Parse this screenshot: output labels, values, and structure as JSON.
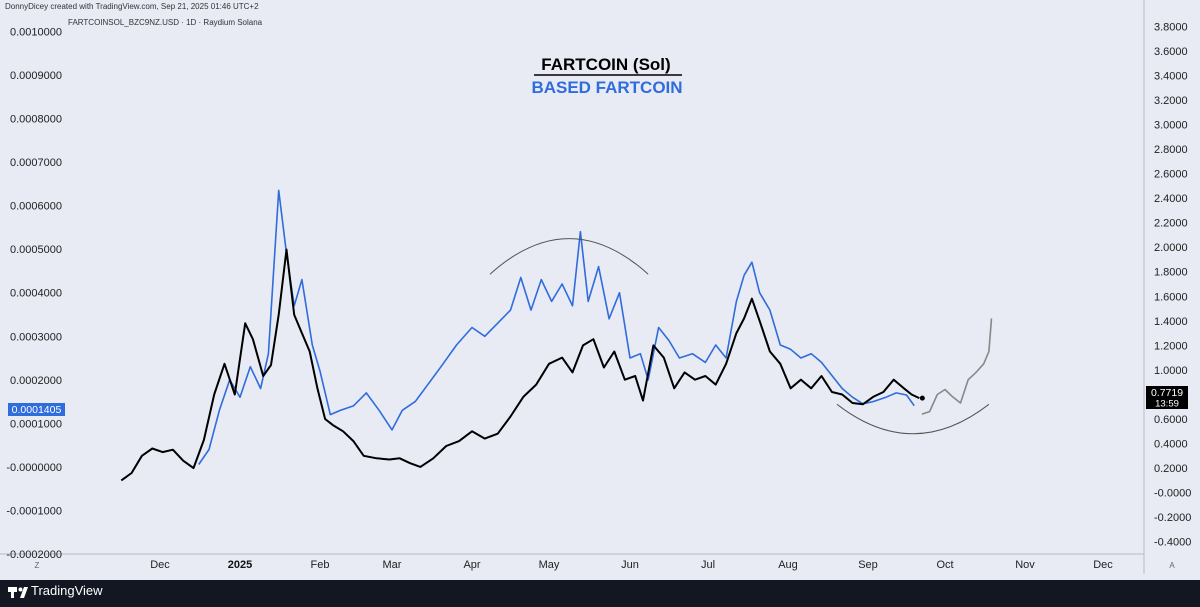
{
  "header": {
    "credit": "DonnyDicey created with TradingView.com, Sep 21, 2025 01:46 UTC+2",
    "symbol": "FARTCOINSOL_BZC9NZ.USD · 1D · Raydium Solana"
  },
  "annotation": {
    "title": "FARTCOIN (Sol)",
    "subtitle": "BASED FARTCOIN"
  },
  "footer": {
    "brand": "TradingView",
    "left_corner": "Z",
    "right_corner": "A"
  },
  "colors": {
    "fartcoin": "#000000",
    "based": "#2f6cdc",
    "background": "#e8eaf4",
    "footer": "#131722",
    "projection": "#888888"
  },
  "chart_data": {
    "type": "line",
    "x_axis": {
      "ticks": [
        "Dec",
        "2025",
        "Feb",
        "Mar",
        "Apr",
        "May",
        "Jun",
        "Jul",
        "Aug",
        "Sep",
        "Oct",
        "Nov",
        "Dec"
      ],
      "bold_ticks": [
        "2025"
      ]
    },
    "left_axis": {
      "ticks": [
        "0.0010000",
        "0.0009000",
        "0.0008000",
        "0.0007000",
        "0.0006000",
        "0.0005000",
        "0.0004000",
        "0.0003000",
        "0.0002000",
        "0.0001000",
        "-0.0000000",
        "-0.0001000",
        "-0.0002000"
      ],
      "range": [
        -0.0002,
        0.00104
      ],
      "current_label": "0.0001405"
    },
    "right_axis": {
      "ticks": [
        "3.8000",
        "3.6000",
        "3.4000",
        "3.2000",
        "3.0000",
        "2.8000",
        "2.6000",
        "2.4000",
        "2.2000",
        "2.0000",
        "1.8000",
        "1.6000",
        "1.4000",
        "1.2000",
        "1.0000",
        "0.8000",
        "0.6000",
        "0.4000",
        "0.2000",
        "-0.0000",
        "-0.2000",
        "-0.4000"
      ],
      "range": [
        -0.5,
        3.9
      ],
      "current_label": "0.7719",
      "countdown": "13:59"
    },
    "series": [
      {
        "name": "FARTCOIN (Sol)",
        "axis": "right",
        "points": [
          [
            "2024-11-16",
            0.1
          ],
          [
            "2024-11-20",
            0.16
          ],
          [
            "2024-11-24",
            0.3
          ],
          [
            "2024-11-28",
            0.36
          ],
          [
            "2024-12-02",
            0.33
          ],
          [
            "2024-12-06",
            0.35
          ],
          [
            "2024-12-10",
            0.26
          ],
          [
            "2024-12-14",
            0.2
          ],
          [
            "2024-12-18",
            0.43
          ],
          [
            "2024-12-22",
            0.8
          ],
          [
            "2024-12-26",
            1.05
          ],
          [
            "2024-12-30",
            0.8
          ],
          [
            "2025-01-03",
            1.38
          ],
          [
            "2025-01-06",
            1.25
          ],
          [
            "2025-01-10",
            0.95
          ],
          [
            "2025-01-13",
            1.04
          ],
          [
            "2025-01-16",
            1.45
          ],
          [
            "2025-01-19",
            1.98
          ],
          [
            "2025-01-22",
            1.45
          ],
          [
            "2025-01-25",
            1.3
          ],
          [
            "2025-01-28",
            1.15
          ],
          [
            "2025-01-31",
            0.85
          ],
          [
            "2025-02-03",
            0.6
          ],
          [
            "2025-02-06",
            0.55
          ],
          [
            "2025-02-10",
            0.5
          ],
          [
            "2025-02-14",
            0.42
          ],
          [
            "2025-02-18",
            0.3
          ],
          [
            "2025-02-23",
            0.28
          ],
          [
            "2025-02-28",
            0.27
          ],
          [
            "2025-03-04",
            0.28
          ],
          [
            "2025-03-08",
            0.24
          ],
          [
            "2025-03-12",
            0.21
          ],
          [
            "2025-03-17",
            0.28
          ],
          [
            "2025-03-22",
            0.38
          ],
          [
            "2025-03-27",
            0.42
          ],
          [
            "2025-04-01",
            0.5
          ],
          [
            "2025-04-06",
            0.44
          ],
          [
            "2025-04-11",
            0.48
          ],
          [
            "2025-04-16",
            0.62
          ],
          [
            "2025-04-21",
            0.78
          ],
          [
            "2025-04-26",
            0.88
          ],
          [
            "2025-05-01",
            1.05
          ],
          [
            "2025-05-06",
            1.1
          ],
          [
            "2025-05-10",
            0.98
          ],
          [
            "2025-05-14",
            1.2
          ],
          [
            "2025-05-18",
            1.25
          ],
          [
            "2025-05-22",
            1.02
          ],
          [
            "2025-05-26",
            1.15
          ],
          [
            "2025-05-30",
            0.92
          ],
          [
            "2025-06-03",
            0.95
          ],
          [
            "2025-06-06",
            0.75
          ],
          [
            "2025-06-10",
            1.2
          ],
          [
            "2025-06-14",
            1.1
          ],
          [
            "2025-06-18",
            0.85
          ],
          [
            "2025-06-22",
            0.98
          ],
          [
            "2025-06-26",
            0.92
          ],
          [
            "2025-06-30",
            0.95
          ],
          [
            "2025-07-04",
            0.88
          ],
          [
            "2025-07-08",
            1.05
          ],
          [
            "2025-07-12",
            1.3
          ],
          [
            "2025-07-15",
            1.42
          ],
          [
            "2025-07-18",
            1.58
          ],
          [
            "2025-07-21",
            1.4
          ],
          [
            "2025-07-25",
            1.15
          ],
          [
            "2025-07-29",
            1.05
          ],
          [
            "2025-08-02",
            0.85
          ],
          [
            "2025-08-06",
            0.92
          ],
          [
            "2025-08-10",
            0.85
          ],
          [
            "2025-08-14",
            0.95
          ],
          [
            "2025-08-18",
            0.82
          ],
          [
            "2025-08-22",
            0.8
          ],
          [
            "2025-08-26",
            0.73
          ],
          [
            "2025-08-30",
            0.72
          ],
          [
            "2025-09-03",
            0.78
          ],
          [
            "2025-09-07",
            0.82
          ],
          [
            "2025-09-11",
            0.92
          ],
          [
            "2025-09-15",
            0.85
          ],
          [
            "2025-09-18",
            0.8
          ],
          [
            "2025-09-21",
            0.77
          ]
        ]
      },
      {
        "name": "BASED FARTCOIN",
        "axis": "left",
        "points": [
          [
            "2024-12-16",
            5.5e-06
          ],
          [
            "2024-12-20",
            4e-05
          ],
          [
            "2024-12-24",
            0.00013
          ],
          [
            "2024-12-28",
            0.0002
          ],
          [
            "2025-01-01",
            0.00016
          ],
          [
            "2025-01-05",
            0.00023
          ],
          [
            "2025-01-09",
            0.00018
          ],
          [
            "2025-01-12",
            0.00026
          ],
          [
            "2025-01-16",
            0.000635
          ],
          [
            "2025-01-19",
            0.00049
          ],
          [
            "2025-01-22",
            0.00037
          ],
          [
            "2025-01-25",
            0.00043
          ],
          [
            "2025-01-29",
            0.00028
          ],
          [
            "2025-02-01",
            0.00022
          ],
          [
            "2025-02-05",
            0.00012
          ],
          [
            "2025-02-09",
            0.00013
          ],
          [
            "2025-02-14",
            0.00014
          ],
          [
            "2025-02-19",
            0.00017
          ],
          [
            "2025-02-24",
            0.00013
          ],
          [
            "2025-03-01",
            8.5e-05
          ],
          [
            "2025-03-05",
            0.00013
          ],
          [
            "2025-03-10",
            0.00015
          ],
          [
            "2025-03-15",
            0.00019
          ],
          [
            "2025-03-20",
            0.00023
          ],
          [
            "2025-03-26",
            0.00028
          ],
          [
            "2025-04-01",
            0.00032
          ],
          [
            "2025-04-06",
            0.0003
          ],
          [
            "2025-04-11",
            0.00033
          ],
          [
            "2025-04-16",
            0.00036
          ],
          [
            "2025-04-20",
            0.000435
          ],
          [
            "2025-04-24",
            0.00036
          ],
          [
            "2025-04-28",
            0.00043
          ],
          [
            "2025-05-02",
            0.00038
          ],
          [
            "2025-05-06",
            0.00042
          ],
          [
            "2025-05-10",
            0.00037
          ],
          [
            "2025-05-13",
            0.00054
          ],
          [
            "2025-05-16",
            0.00038
          ],
          [
            "2025-05-20",
            0.00046
          ],
          [
            "2025-05-24",
            0.00034
          ],
          [
            "2025-05-28",
            0.0004
          ],
          [
            "2025-06-01",
            0.00025
          ],
          [
            "2025-06-05",
            0.00026
          ],
          [
            "2025-06-08",
            0.0002
          ],
          [
            "2025-06-12",
            0.00032
          ],
          [
            "2025-06-16",
            0.00029
          ],
          [
            "2025-06-20",
            0.00025
          ],
          [
            "2025-06-25",
            0.00026
          ],
          [
            "2025-06-30",
            0.00024
          ],
          [
            "2025-07-04",
            0.00028
          ],
          [
            "2025-07-08",
            0.00025
          ],
          [
            "2025-07-12",
            0.00038
          ],
          [
            "2025-07-15",
            0.00044
          ],
          [
            "2025-07-18",
            0.00047
          ],
          [
            "2025-07-21",
            0.0004
          ],
          [
            "2025-07-25",
            0.00036
          ],
          [
            "2025-07-29",
            0.00028
          ],
          [
            "2025-08-02",
            0.00027
          ],
          [
            "2025-08-06",
            0.00025
          ],
          [
            "2025-08-10",
            0.00026
          ],
          [
            "2025-08-14",
            0.00024
          ],
          [
            "2025-08-18",
            0.00021
          ],
          [
            "2025-08-22",
            0.00018
          ],
          [
            "2025-08-26",
            0.00016
          ],
          [
            "2025-08-30",
            0.000145
          ],
          [
            "2025-09-03",
            0.00015
          ],
          [
            "2025-09-08",
            0.00016
          ],
          [
            "2025-09-12",
            0.00017
          ],
          [
            "2025-09-16",
            0.000165
          ],
          [
            "2025-09-19",
            0.0001405
          ]
        ]
      }
    ],
    "projection": {
      "axis": "right",
      "points": [
        [
          "2025-09-22",
          0.64
        ],
        [
          "2025-09-25",
          0.66
        ],
        [
          "2025-09-28",
          0.8
        ],
        [
          "2025-10-01",
          0.84
        ],
        [
          "2025-10-04",
          0.78
        ],
        [
          "2025-10-07",
          0.73
        ],
        [
          "2025-10-10",
          0.92
        ],
        [
          "2025-10-13",
          0.98
        ],
        [
          "2025-10-16",
          1.05
        ],
        [
          "2025-10-18",
          1.15
        ],
        [
          "2025-10-19",
          1.42
        ]
      ]
    },
    "annotations": [
      {
        "type": "arc",
        "shape": "dome",
        "from": "2025-04-08",
        "to": "2025-06-08",
        "axis": "right",
        "base": 1.78,
        "peak": 2.07
      },
      {
        "type": "arc",
        "shape": "bowl",
        "from": "2025-08-20",
        "to": "2025-10-18",
        "axis": "right",
        "base": 0.72,
        "trough": 0.48
      }
    ]
  }
}
